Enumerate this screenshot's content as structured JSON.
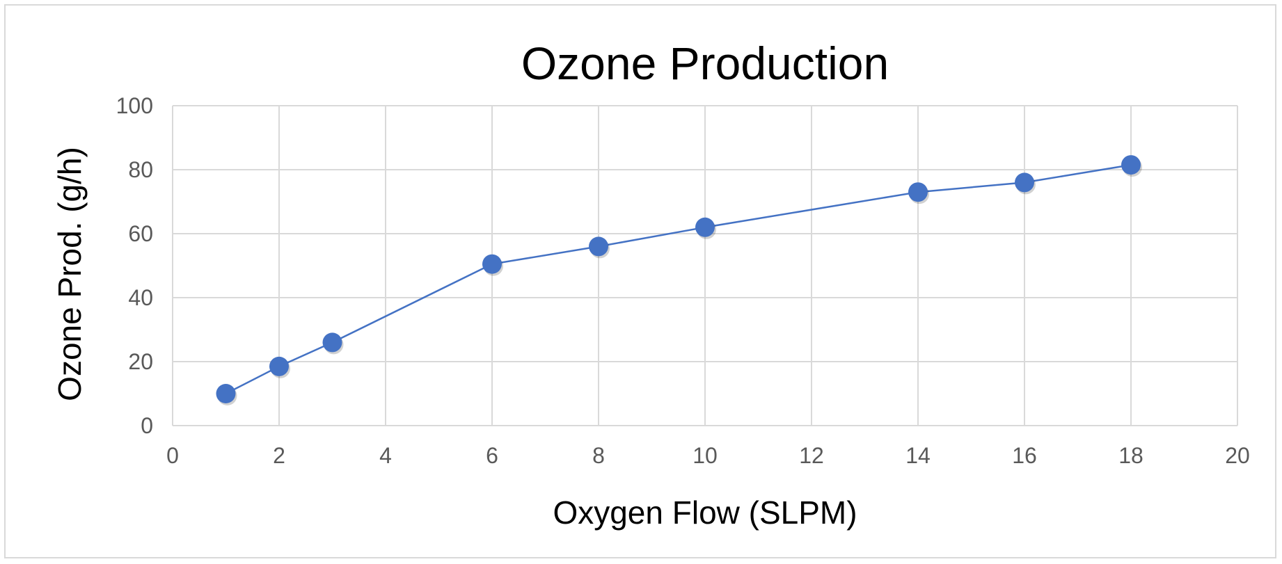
{
  "chart_data": {
    "type": "scatter",
    "title": "Ozone Production",
    "xlabel": "Oxygen Flow (SLPM)",
    "ylabel": "Ozone Prod. (g/h)",
    "xlim": [
      0,
      20
    ],
    "ylim": [
      0,
      100
    ],
    "xticks": [
      0,
      2,
      4,
      6,
      8,
      10,
      12,
      14,
      16,
      18,
      20
    ],
    "yticks": [
      0,
      20,
      40,
      60,
      80,
      100
    ],
    "grid": true,
    "legend": "none",
    "series": [
      {
        "x": [
          1,
          2,
          3,
          6,
          8,
          10,
          14,
          16,
          18
        ],
        "y": [
          10,
          18.5,
          26,
          50.5,
          56,
          62,
          73,
          76,
          81.5
        ],
        "color": "#4472c4",
        "line": true,
        "marker": "circle"
      }
    ]
  }
}
